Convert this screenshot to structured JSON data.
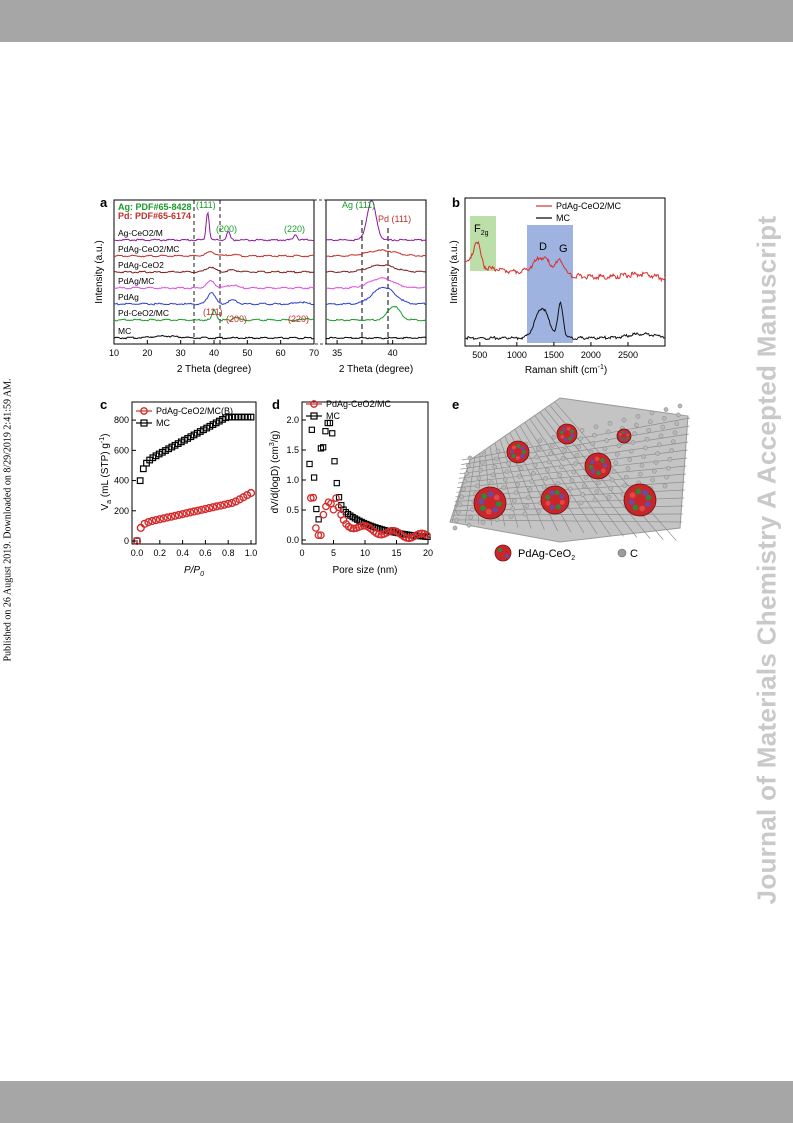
{
  "side_text": "Published on 26 August 2019. Downloaded on 8/29/2019 2:41:59 AM.",
  "watermark": "Journal of Materials Chemistry A Accepted Manuscript",
  "colors": {
    "bar": "#a6a6a6",
    "watermark": "#c9c9c9"
  },
  "panel_a": {
    "label": "a",
    "ylabel": "Intensity (a.u.)",
    "xlabel": "2 Theta (degree)",
    "xticks": [
      "10",
      "20",
      "30",
      "40",
      "50",
      "60",
      "70"
    ],
    "zoom_xticks": [
      "35",
      "40"
    ],
    "ref_ag": "Ag: PDF#65-8428",
    "ref_pd": "Pd: PDF#65-6174",
    "peak_labels_green": [
      "(111)",
      "(200)",
      "(220)",
      "Ag (111)"
    ],
    "peak_labels_red": [
      "(111)",
      "(200)",
      "(220)",
      "Pd (111)"
    ],
    "samples": [
      "Ag-CeO2/M",
      "PdAg-CeO2/MC",
      "PdAg-CeO2",
      "PdAg/MC",
      "PdAg",
      "Pd-CeO2/MC",
      "MC"
    ],
    "sample_colors": [
      "#8b1a9e",
      "#c0302b",
      "#7a1f1f",
      "#e04ce0",
      "#2a3fd0",
      "#1a9a2a",
      "#000000"
    ]
  },
  "panel_b": {
    "label": "b",
    "ylabel": "Intensity (a.u.)",
    "xlabel": "Raman shift (cm",
    "xlabel_sup": "-1",
    "xlabel_end": ")",
    "xticks": [
      "500",
      "1000",
      "1500",
      "2000",
      "2500"
    ],
    "legend": [
      "PdAg-CeO2/MC",
      "MC"
    ],
    "band_f2g": "F",
    "band_f2g_sub": "2g",
    "band_d": "D",
    "band_g": "G"
  },
  "panel_c": {
    "label": "c",
    "ylabel_main": "V",
    "ylabel_sub": "a",
    "ylabel_rest": " (mL (STP) g",
    "ylabel_sup": "-1",
    "ylabel_end": ")",
    "xlabel_main": "P/P",
    "xlabel_sub": "0",
    "xticks": [
      "0.0",
      "0.2",
      "0.4",
      "0.6",
      "0.8",
      "1.0"
    ],
    "yticks": [
      "0",
      "200",
      "400",
      "600",
      "800"
    ],
    "legend": [
      "PdAg-CeO2/MC(B)",
      "MC"
    ]
  },
  "panel_d": {
    "label": "d",
    "ylabel": "dV/d(logD) (cm",
    "ylabel_sup": "3",
    "ylabel_end": "/g)",
    "xlabel": "Pore size (nm)",
    "xticks": [
      "0",
      "5",
      "10",
      "15",
      "20"
    ],
    "yticks": [
      "0.0",
      "0.5",
      "1.0",
      "1.5",
      "2.0"
    ],
    "legend": [
      "PdAg-CeO2/MC",
      "MC"
    ]
  },
  "panel_e": {
    "label": "e",
    "legend_particle": "PdAg-CeO",
    "legend_particle_sub": "2",
    "legend_c": "C"
  }
}
